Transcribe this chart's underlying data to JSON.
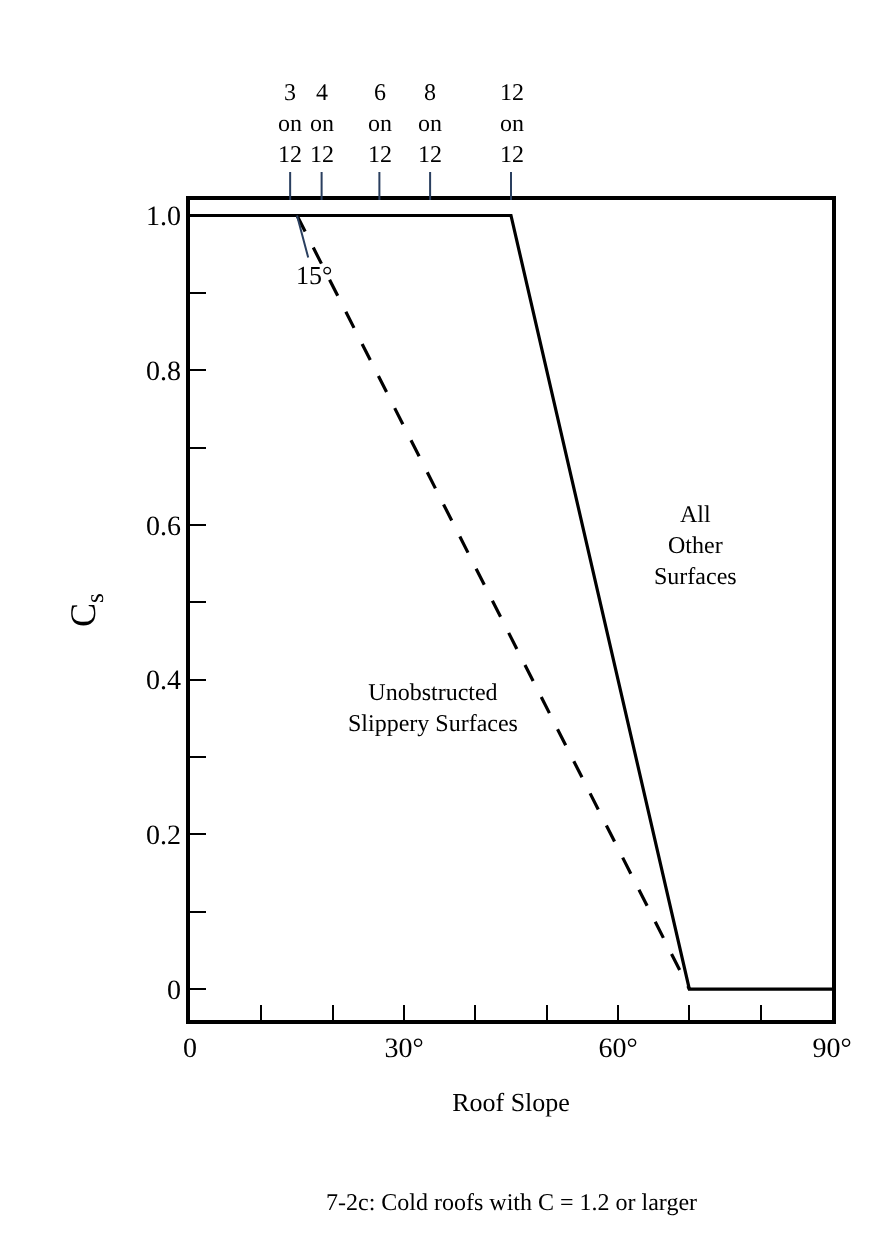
{
  "chart_data": {
    "type": "line",
    "xlabel": "Roof Slope",
    "ylabel": "C$_{s}$",
    "series": [
      {
        "color": "#000000",
        "line_style": "solid",
        "x": [
          0,
          45,
          70,
          90
        ],
        "values": [
          1,
          1,
          0,
          0
        ]
      },
      {
        "color": "#000000",
        "line_style": "dashed",
        "x": [
          15,
          70
        ],
        "values": [
          1,
          0
        ]
      }
    ],
    "xlim": [
      0,
      90
    ],
    "ylim": [
      -0.04,
      1.02
    ],
    "xticks": [
      0,
      {
        "value": 10,
        "label": null
      },
      {
        "value": 20,
        "label": null
      },
      {
        "value": 30,
        "label": "30°"
      },
      {
        "value": 40,
        "label": null
      },
      {
        "value": 50,
        "label": null
      },
      {
        "value": 60,
        "label": "60°"
      },
      {
        "value": 70,
        "label": null
      },
      {
        "value": 80,
        "label": null
      },
      {
        "value": 90,
        "label": "90°"
      }
    ],
    "yticks": [
      0,
      {
        "value": 0.1,
        "label": null
      },
      0.2,
      {
        "value": 0.3,
        "label": null
      },
      0.4,
      {
        "value": 0.5,
        "label": null
      },
      0.6,
      {
        "value": 0.7,
        "label": null
      },
      0.8,
      {
        "value": 0.9,
        "label": null
      },
      {
        "value": 1,
        "label": "1.0"
      }
    ],
    "annotations": [
      {
        "text": "15°",
        "x": 15,
        "y": 1
      },
      "3\non\n12",
      "4\non\n12",
      "6\non\n12",
      "8\non\n12",
      "12\non\n12",
      "All\nOther\nSurfaces",
      "Unobstructed\nSlippery Surfaces",
      "7-2c: Cold roofs with C = 1.2 or larger"
    ],
    "legend": false,
    "marker": "none"
  }
}
